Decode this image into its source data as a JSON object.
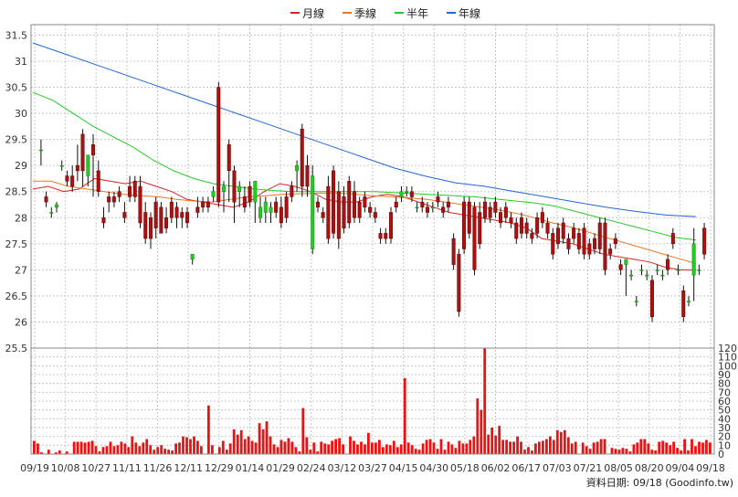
{
  "chart_data": [
    {
      "type": "candlestick",
      "legend": [
        {
          "name": "月線",
          "color": "#dd2222"
        },
        {
          "name": "季線",
          "color": "#ee7722"
        },
        {
          "name": "半年",
          "color": "#22cc22"
        },
        {
          "name": "年線",
          "color": "#2266dd"
        }
      ],
      "legend_position": "top-center",
      "ylim": [
        25.5,
        31.7
      ],
      "yticks": [
        25.5,
        26,
        26.5,
        27,
        27.5,
        28,
        28.5,
        29,
        29.5,
        30,
        30.5,
        31,
        31.5
      ],
      "grid": true,
      "up_color": "#22cc22",
      "down_color": "#aa1111",
      "candles": [
        [
          29.3,
          29.5,
          29.0,
          29.3
        ],
        [
          28.4,
          28.5,
          28.2,
          28.3
        ],
        [
          28.1,
          28.2,
          28.0,
          28.1
        ],
        [
          28.2,
          28.3,
          28.1,
          28.25
        ],
        [
          29.0,
          29.1,
          28.9,
          29.0
        ],
        [
          28.8,
          28.9,
          28.6,
          28.7
        ],
        [
          28.8,
          29.0,
          28.5,
          28.6
        ],
        [
          29.0,
          29.4,
          28.7,
          28.9
        ],
        [
          29.6,
          29.7,
          28.6,
          28.9
        ],
        [
          28.8,
          29.2,
          28.6,
          29.2
        ],
        [
          29.4,
          29.6,
          28.4,
          29.2
        ],
        [
          28.9,
          29.1,
          28.4,
          28.5
        ],
        [
          28.0,
          28.2,
          27.8,
          27.9
        ],
        [
          28.4,
          28.5,
          28.1,
          28.3
        ],
        [
          28.4,
          28.5,
          28.2,
          28.3
        ],
        [
          28.5,
          28.6,
          28.3,
          28.4
        ],
        [
          28.1,
          28.3,
          27.9,
          28.0
        ],
        [
          28.6,
          28.8,
          28.3,
          28.4
        ],
        [
          28.7,
          28.8,
          28.3,
          28.4
        ],
        [
          28.6,
          28.8,
          27.8,
          27.9
        ],
        [
          28.1,
          28.3,
          27.5,
          27.6
        ],
        [
          28.0,
          28.1,
          27.4,
          27.6
        ],
        [
          28.3,
          28.4,
          27.6,
          27.8
        ],
        [
          28.2,
          28.3,
          27.7,
          27.7
        ],
        [
          28.0,
          28.2,
          27.7,
          27.8
        ],
        [
          28.3,
          28.4,
          27.9,
          28.0
        ],
        [
          28.2,
          28.3,
          27.8,
          28.0
        ],
        [
          28.1,
          28.2,
          27.8,
          28.0
        ],
        [
          28.1,
          28.2,
          27.8,
          27.9
        ],
        [
          27.2,
          27.3,
          27.1,
          27.3
        ],
        [
          28.2,
          28.4,
          28.0,
          28.1
        ],
        [
          28.3,
          28.4,
          28.1,
          28.2
        ],
        [
          28.3,
          28.4,
          28.1,
          28.2
        ],
        [
          28.4,
          28.6,
          28.3,
          28.5
        ],
        [
          30.5,
          30.6,
          28.2,
          28.3
        ],
        [
          28.5,
          28.7,
          28.1,
          28.6
        ],
        [
          29.4,
          29.5,
          28.3,
          28.9
        ],
        [
          28.9,
          29.0,
          27.9,
          28.3
        ],
        [
          28.5,
          28.7,
          28.2,
          28.6
        ],
        [
          28.4,
          28.6,
          28.1,
          28.2
        ],
        [
          28.6,
          28.7,
          28.2,
          28.3
        ],
        [
          28.3,
          28.7,
          27.9,
          28.7
        ],
        [
          28.0,
          28.4,
          27.9,
          28.2
        ],
        [
          28.1,
          28.4,
          27.9,
          28.3
        ],
        [
          28.1,
          28.3,
          27.9,
          28.2
        ],
        [
          28.3,
          28.4,
          28.0,
          28.1
        ],
        [
          28.2,
          28.4,
          27.8,
          27.9
        ],
        [
          28.4,
          28.5,
          27.9,
          28.0
        ],
        [
          28.6,
          28.7,
          28.3,
          28.4
        ],
        [
          28.9,
          29.1,
          28.5,
          29.0
        ],
        [
          29.7,
          29.8,
          28.4,
          28.6
        ],
        [
          29.0,
          29.2,
          28.4,
          28.6
        ],
        [
          27.4,
          29.0,
          27.3,
          28.8
        ],
        [
          28.3,
          28.4,
          28.1,
          28.2
        ],
        [
          28.1,
          28.2,
          27.9,
          28.0
        ],
        [
          28.6,
          28.8,
          27.5,
          27.6
        ],
        [
          28.9,
          29.0,
          27.6,
          27.7
        ],
        [
          28.5,
          28.7,
          27.4,
          27.6
        ],
        [
          28.4,
          28.6,
          27.7,
          27.8
        ],
        [
          28.7,
          28.8,
          27.8,
          27.9
        ],
        [
          28.5,
          28.7,
          27.9,
          28.0
        ],
        [
          28.3,
          28.4,
          27.9,
          28.0
        ],
        [
          28.4,
          28.5,
          28.1,
          28.2
        ],
        [
          28.2,
          28.3,
          28.0,
          28.1
        ],
        [
          28.1,
          28.2,
          27.9,
          28.0
        ],
        [
          27.7,
          27.8,
          27.5,
          27.6
        ],
        [
          27.7,
          27.8,
          27.5,
          27.6
        ],
        [
          28.1,
          28.2,
          27.5,
          27.6
        ],
        [
          28.3,
          28.4,
          28.1,
          28.2
        ],
        [
          28.4,
          28.6,
          28.3,
          28.5
        ],
        [
          28.5,
          28.6,
          28.4,
          28.5
        ],
        [
          28.5,
          28.6,
          28.3,
          28.4
        ],
        [
          28.2,
          28.3,
          28.1,
          28.2
        ],
        [
          28.3,
          28.4,
          28.1,
          28.2
        ],
        [
          28.2,
          28.3,
          28.0,
          28.1
        ],
        [
          28.2,
          28.3,
          28.1,
          28.2
        ],
        [
          28.4,
          28.5,
          28.2,
          28.3
        ],
        [
          28.2,
          28.3,
          28.0,
          28.1
        ],
        [
          28.3,
          28.4,
          28.1,
          28.2
        ],
        [
          27.6,
          27.7,
          27.0,
          27.1
        ],
        [
          27.3,
          27.4,
          26.1,
          26.2
        ],
        [
          28.3,
          28.4,
          27.3,
          27.4
        ],
        [
          28.3,
          28.4,
          27.6,
          27.7
        ],
        [
          28.2,
          28.3,
          26.9,
          27.0
        ],
        [
          28.1,
          28.3,
          27.4,
          27.5
        ],
        [
          28.3,
          28.4,
          27.9,
          28.0
        ],
        [
          28.2,
          28.3,
          27.9,
          28.0
        ],
        [
          28.3,
          28.4,
          28.0,
          28.1
        ],
        [
          28.1,
          28.2,
          27.8,
          27.9
        ],
        [
          28.2,
          28.3,
          27.9,
          28.0
        ],
        [
          28.0,
          28.1,
          27.8,
          27.9
        ],
        [
          27.9,
          28.0,
          27.5,
          27.6
        ],
        [
          28.0,
          28.1,
          27.6,
          27.7
        ],
        [
          27.9,
          28.0,
          27.6,
          27.7
        ],
        [
          27.7,
          27.8,
          27.5,
          27.6
        ],
        [
          28.0,
          28.1,
          27.6,
          27.7
        ],
        [
          28.1,
          28.2,
          27.8,
          27.9
        ],
        [
          27.9,
          28.0,
          27.6,
          27.7
        ],
        [
          27.7,
          27.8,
          27.2,
          27.3
        ],
        [
          27.8,
          27.9,
          27.4,
          27.5
        ],
        [
          27.9,
          28.0,
          27.5,
          27.6
        ],
        [
          27.6,
          27.7,
          27.3,
          27.4
        ],
        [
          27.8,
          27.9,
          27.5,
          27.6
        ],
        [
          27.7,
          27.8,
          27.3,
          27.4
        ],
        [
          27.8,
          27.9,
          27.2,
          27.3
        ],
        [
          27.5,
          27.6,
          27.2,
          27.3
        ],
        [
          27.6,
          27.7,
          27.3,
          27.4
        ],
        [
          27.9,
          28.0,
          27.3,
          27.4
        ],
        [
          27.9,
          28.0,
          26.9,
          27.0
        ],
        [
          27.4,
          27.5,
          27.2,
          27.3
        ],
        [
          27.6,
          27.7,
          27.4,
          27.5
        ],
        [
          27.1,
          27.2,
          26.9,
          27.0
        ],
        [
          27.1,
          27.2,
          26.5,
          27.2
        ],
        [
          26.9,
          27.0,
          26.8,
          26.9
        ],
        [
          26.4,
          26.5,
          26.3,
          26.4
        ],
        [
          27.0,
          27.1,
          26.9,
          27.0
        ],
        [
          26.9,
          27.0,
          26.8,
          26.9
        ],
        [
          26.8,
          26.9,
          26.0,
          26.1
        ],
        [
          27.0,
          27.1,
          26.9,
          27.0
        ],
        [
          26.9,
          27.0,
          26.8,
          26.9
        ],
        [
          27.2,
          27.3,
          26.9,
          27.0
        ],
        [
          27.7,
          27.8,
          27.4,
          27.5
        ],
        [
          27.0,
          27.1,
          26.9,
          27.0
        ],
        [
          26.6,
          26.7,
          26.0,
          26.1
        ],
        [
          26.4,
          26.5,
          26.3,
          26.4
        ],
        [
          26.9,
          27.8,
          26.4,
          27.5
        ],
        [
          27.0,
          27.1,
          26.9,
          27.0
        ],
        [
          27.8,
          27.9,
          27.2,
          27.3
        ]
      ],
      "moving_averages": {
        "月線": [
          28.55,
          28.6,
          28.5,
          28.55,
          28.75,
          28.7,
          28.65,
          28.7,
          28.6,
          28.5,
          28.35,
          28.3,
          28.25,
          28.2,
          28.3,
          28.5,
          28.65,
          28.6,
          28.5,
          28.35,
          28.3,
          28.3,
          28.4,
          28.45,
          28.4,
          28.3,
          28.2,
          28.1,
          28.05,
          28.0,
          27.95,
          27.9,
          27.8,
          27.6,
          27.55,
          27.5,
          27.4,
          27.3,
          27.25,
          27.2,
          27.15,
          27.05,
          27.0,
          27.0
        ],
        "季線": [
          28.7,
          28.7,
          28.6,
          28.55,
          28.5,
          28.45,
          28.42,
          28.4,
          28.35,
          28.32,
          28.3,
          28.35,
          28.4,
          28.42,
          28.45,
          28.46,
          28.47,
          28.47,
          28.45,
          28.42,
          28.4,
          28.38,
          28.35,
          28.3,
          28.25,
          28.2,
          28.15,
          28.08,
          28.0,
          27.9,
          27.82,
          27.72,
          27.62,
          27.52,
          27.42,
          27.32,
          27.22,
          27.12
        ],
        "半年": [
          30.4,
          30.25,
          30.0,
          29.75,
          29.55,
          29.35,
          29.1,
          28.9,
          28.75,
          28.65,
          28.6,
          28.55,
          28.52,
          28.5,
          28.5,
          28.5,
          28.5,
          28.5,
          28.48,
          28.46,
          28.44,
          28.42,
          28.4,
          28.36,
          28.32,
          28.28,
          28.22,
          28.12,
          28.02,
          27.92,
          27.82,
          27.72,
          27.62,
          27.57
        ],
        "年線": [
          31.35,
          31.15,
          30.95,
          30.75,
          30.55,
          30.35,
          30.15,
          29.95,
          29.75,
          29.55,
          29.35,
          29.15,
          28.95,
          28.8,
          28.67,
          28.6,
          28.5,
          28.4,
          28.3,
          28.2,
          28.12,
          28.05,
          28.02
        ]
      }
    },
    {
      "type": "bar",
      "ylim": [
        0,
        120
      ],
      "yticks": [
        0,
        10,
        20,
        30,
        40,
        50,
        60,
        70,
        80,
        90,
        100,
        110,
        120
      ],
      "color": "#ee1111",
      "x_labels": [
        "09/19",
        "10/08",
        "10/27",
        "11/11",
        "11/26",
        "12/11",
        "12/29",
        "01/14",
        "01/29",
        "02/24",
        "03/12",
        "03/27",
        "04/15",
        "04/30",
        "05/18",
        "06/02",
        "06/17",
        "07/03",
        "07/21",
        "08/05",
        "08/20",
        "09/04",
        "09/18"
      ],
      "values": [
        15,
        12,
        2,
        0,
        5,
        0,
        2,
        4,
        0,
        3,
        0,
        14,
        14,
        14,
        13,
        14,
        15,
        9,
        3,
        8,
        9,
        14,
        9,
        10,
        14,
        12,
        8,
        20,
        13,
        9,
        13,
        17,
        10,
        5,
        8,
        10,
        6,
        5,
        4,
        12,
        13,
        20,
        19,
        17,
        20,
        15,
        9,
        0,
        55,
        10,
        0,
        8,
        15,
        5,
        12,
        28,
        22,
        27,
        17,
        20,
        15,
        13,
        35,
        28,
        37,
        20,
        11,
        8,
        16,
        14,
        18,
        14,
        8,
        3,
        52,
        19,
        5,
        13,
        3,
        14,
        12,
        11,
        15,
        17,
        18,
        11,
        0,
        20,
        15,
        11,
        14,
        11,
        24,
        13,
        13,
        16,
        8,
        11,
        10,
        15,
        8,
        11,
        86,
        13,
        10,
        6,
        5,
        12,
        16,
        17,
        13,
        6,
        17,
        5,
        14,
        11,
        7,
        15,
        12,
        12,
        16,
        20,
        63,
        50,
        122,
        22,
        30,
        21,
        32,
        16,
        16,
        14,
        14,
        20,
        14,
        5,
        8,
        4,
        12,
        14,
        15,
        17,
        20,
        16,
        27,
        25,
        27,
        19,
        12,
        14,
        0,
        13,
        9,
        6,
        13,
        14,
        17,
        17,
        0,
        7,
        6,
        5,
        7,
        6,
        3,
        11,
        13,
        17,
        17,
        12,
        5,
        4,
        14,
        15,
        13,
        10,
        14,
        7,
        4,
        17,
        4,
        17,
        9,
        14,
        13,
        16,
        13
      ]
    }
  ],
  "footer": {
    "date_label": "資料日期: 09/18  (Goodinfo.tw)"
  }
}
